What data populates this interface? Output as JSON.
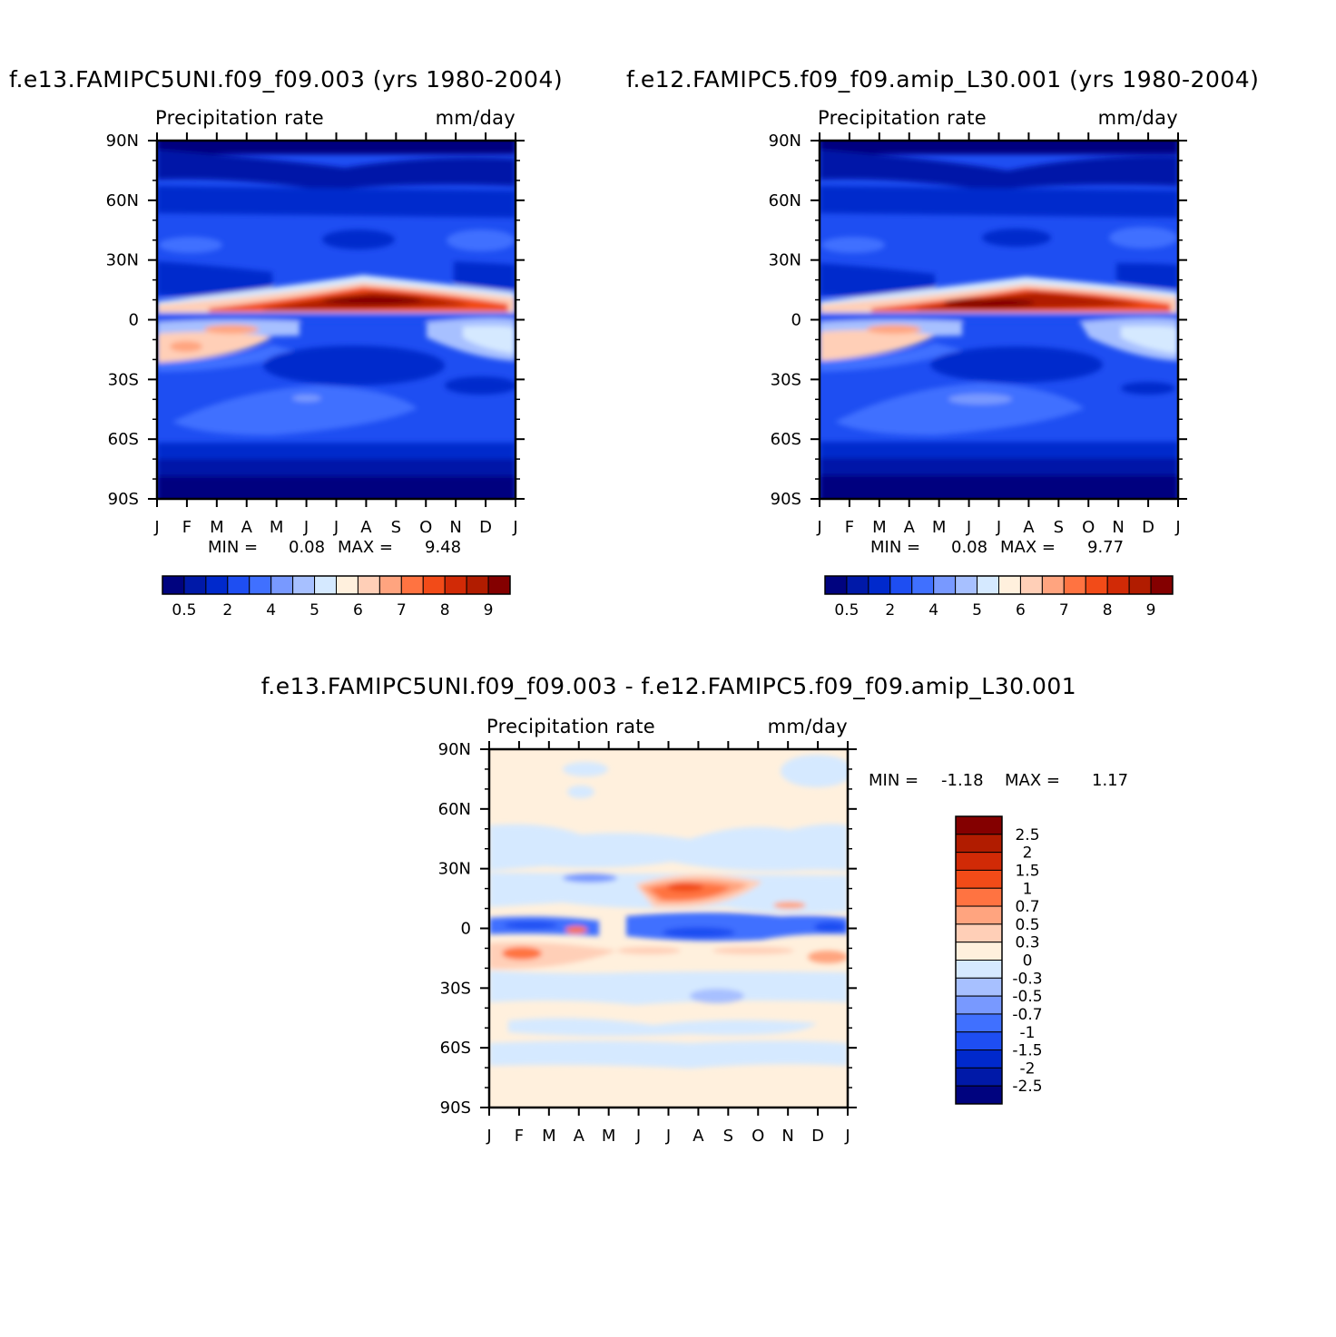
{
  "chart_data": [
    {
      "type": "heatmap",
      "title": "f.e13.FAMIPC5UNI.f09_f09.003 (yrs 1980-2004)",
      "subtitle_left": "Precipitation rate",
      "subtitle_right": "mm/day",
      "x_ticks": [
        "J",
        "F",
        "M",
        "A",
        "M",
        "J",
        "J",
        "A",
        "S",
        "O",
        "N",
        "D",
        "J"
      ],
      "y_ticks": [
        "90N",
        "60N",
        "30N",
        "0",
        "30S",
        "60S",
        "90S"
      ],
      "min_label": "MIN =",
      "min_value": "0.08",
      "max_label": "MAX =",
      "max_value": "9.48",
      "levels": [
        "0.5",
        "2",
        "4",
        "5",
        "6",
        "7",
        "8",
        "9"
      ],
      "level_colors": [
        "#00037f",
        "#0019a8",
        "#0029cc",
        "#1e4ef2",
        "#4070ff",
        "#7899ff",
        "#a7c0ff",
        "#d5e9ff",
        "#fff0dd",
        "#ffcfb7",
        "#ffa47f",
        "#ff7341",
        "#f24b18",
        "#d12a06",
        "#b11c00",
        "#840000"
      ]
    },
    {
      "type": "heatmap",
      "title": "f.e12.FAMIPC5.f09_f09.amip_L30.001 (yrs 1980-2004)",
      "subtitle_left": "Precipitation rate",
      "subtitle_right": "mm/day",
      "x_ticks": [
        "J",
        "F",
        "M",
        "A",
        "M",
        "J",
        "J",
        "A",
        "S",
        "O",
        "N",
        "D",
        "J"
      ],
      "y_ticks": [
        "90N",
        "60N",
        "30N",
        "0",
        "30S",
        "60S",
        "90S"
      ],
      "min_label": "MIN =",
      "min_value": "0.08",
      "max_label": "MAX =",
      "max_value": "9.77",
      "levels": [
        "0.5",
        "2",
        "4",
        "5",
        "6",
        "7",
        "8",
        "9"
      ],
      "level_colors": [
        "#00037f",
        "#0019a8",
        "#0029cc",
        "#1e4ef2",
        "#4070ff",
        "#7899ff",
        "#a7c0ff",
        "#d5e9ff",
        "#fff0dd",
        "#ffcfb7",
        "#ffa47f",
        "#ff7341",
        "#f24b18",
        "#d12a06",
        "#b11c00",
        "#840000"
      ]
    },
    {
      "type": "heatmap",
      "title": "f.e13.FAMIPC5UNI.f09_f09.003 - f.e12.FAMIPC5.f09_f09.amip_L30.001",
      "subtitle_left": "Precipitation rate",
      "subtitle_right": "mm/day",
      "x_ticks": [
        "J",
        "F",
        "M",
        "A",
        "M",
        "J",
        "J",
        "A",
        "S",
        "O",
        "N",
        "D",
        "J"
      ],
      "y_ticks": [
        "90N",
        "60N",
        "30N",
        "0",
        "30S",
        "60S",
        "90S"
      ],
      "min_label": "MIN =",
      "min_value": "-1.18",
      "max_label": "MAX =",
      "max_value": "1.17",
      "levels": [
        "2.5",
        "2",
        "1.5",
        "1",
        "0.7",
        "0.5",
        "0.3",
        "0",
        "-0.3",
        "-0.5",
        "-0.7",
        "-1",
        "-1.5",
        "-2",
        "-2.5"
      ],
      "level_colors": [
        "#840000",
        "#b11c00",
        "#d12a06",
        "#f24b18",
        "#ff7341",
        "#ffa47f",
        "#ffcfb7",
        "#fff0dd",
        "#d5e9ff",
        "#a7c0ff",
        "#7899ff",
        "#4070ff",
        "#1e4ef2",
        "#0029cc",
        "#0019a8",
        "#00037f"
      ]
    }
  ]
}
